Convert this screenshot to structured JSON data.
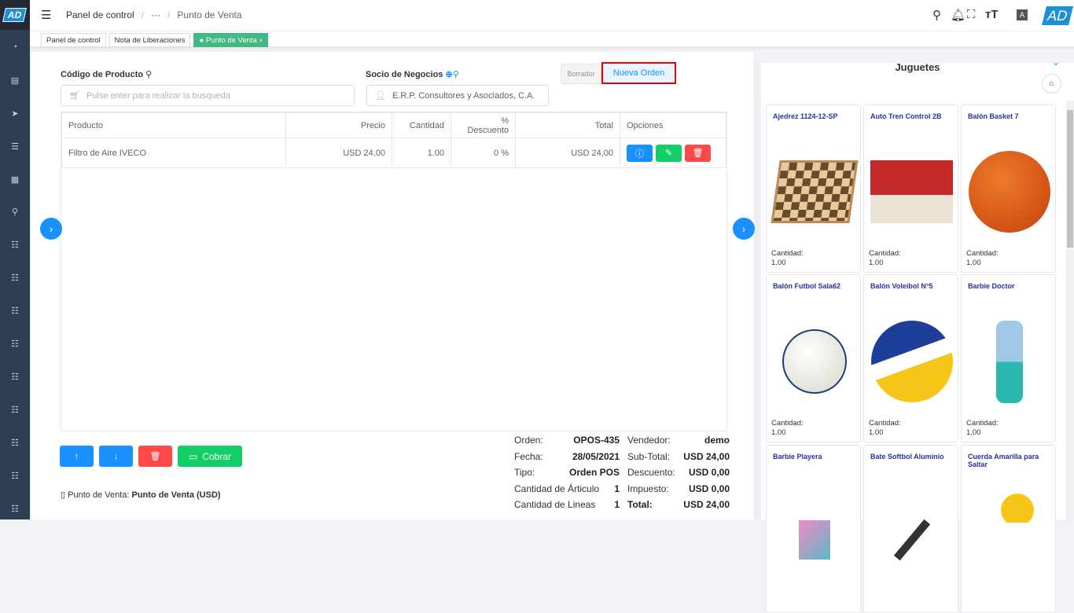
{
  "app": {
    "logo": "AD",
    "avatar": "AD"
  },
  "header": {
    "breadcrumb": [
      "Panel de control",
      "···",
      "Punto de Venta"
    ],
    "icons": [
      "search-icon",
      "bell-icon",
      "fullscreen-icon",
      "font-size-icon",
      "translate-icon"
    ]
  },
  "tabs": [
    {
      "label": "Panel de control"
    },
    {
      "label": "Nota de Liberaciones"
    },
    {
      "label": "Punto de Venta",
      "close": "×"
    }
  ],
  "form": {
    "product_label": "Código de Producto",
    "product_placeholder": "Pulse enter para realizar la busqueda",
    "partner_label": "Socio de Negocios",
    "partner_value": "E.R.P. Consultores y Asociados, C.A.",
    "draft_label": "Borrador",
    "new_order_label": "Nueva Orden"
  },
  "table": {
    "headers": [
      "Producto",
      "Precio",
      "Cantidad",
      "% Descuento",
      "Total",
      "Opciones"
    ],
    "rows": [
      {
        "product": "Filtro de Aire IVECO",
        "price": "USD 24,00",
        "qty": "1.00",
        "discount": "0 %",
        "total": "USD 24,00"
      }
    ]
  },
  "actions": {
    "charge_label": "Cobrar"
  },
  "pos": {
    "label": "Punto de Venta:",
    "value": "Punto de Venta (USD)"
  },
  "summary": {
    "left": [
      {
        "k": "Orden:",
        "v": "OPOS-435"
      },
      {
        "k": "Fecha:",
        "v": "28/05/2021"
      },
      {
        "k": "Tipo:",
        "v": "Orden POS"
      },
      {
        "k": "Cantidad de Árticulo",
        "v": "1"
      },
      {
        "k": "Cantidad de Lineas",
        "v": "1"
      }
    ],
    "right": [
      {
        "k": "Vendedor:",
        "v": "demo"
      },
      {
        "k": "Sub-Total:",
        "v": "USD 24,00"
      },
      {
        "k": "Descuento:",
        "v": "USD 0,00"
      },
      {
        "k": "Impuesto:",
        "v": "USD 0,00"
      },
      {
        "k": "Total:",
        "v": "USD 24,00"
      }
    ]
  },
  "catalog": {
    "title": "Juguetes",
    "qty_label": "Cantidad:",
    "products": [
      {
        "name": "Ajedrez 1124-12-SP",
        "qty": "1.00"
      },
      {
        "name": "Auto Tren Control 2B",
        "qty": "1.00"
      },
      {
        "name": "Balón Basket 7",
        "qty": "1.00"
      },
      {
        "name": "Balón Futbol Sala62",
        "qty": "1.00"
      },
      {
        "name": "Balón Voleibol N°5",
        "qty": "1.00"
      },
      {
        "name": "Barbie Doctor",
        "qty": "1.00"
      },
      {
        "name": "Barbie Playera"
      },
      {
        "name": "Bate Softbol Aluminio"
      },
      {
        "name": "Cuerda Amarilla para Saltar"
      }
    ]
  },
  "colors": {
    "primary": "#1890ff",
    "success": "#13ce66",
    "danger": "#ff4949",
    "active_tab": "#42b883",
    "sidebar": "#2e3e52"
  }
}
